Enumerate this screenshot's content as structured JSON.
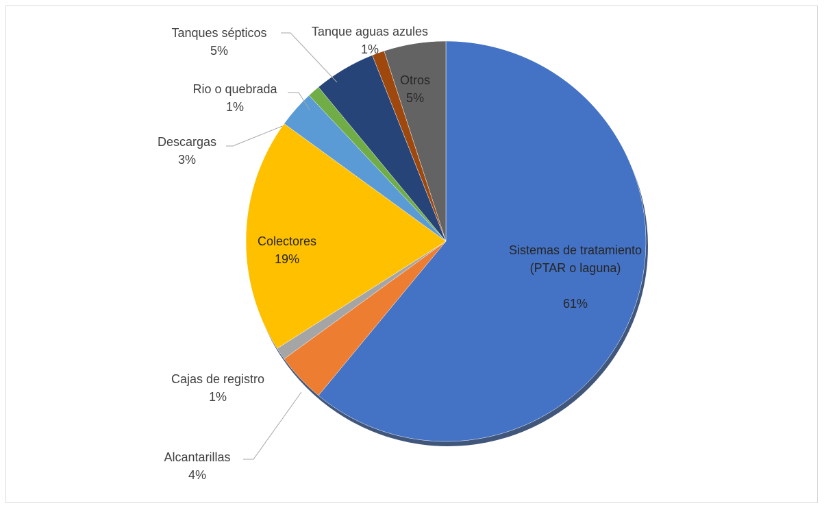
{
  "chart_data": {
    "type": "pie",
    "categories": [
      "Sistemas de tratamiento (PTAR o laguna)",
      "Alcantarillas",
      "Cajas de registro",
      "Colectores",
      "Descargas",
      "Rio o quebrada",
      "Tanques sépticos",
      "Tanque aguas azules",
      "Otros"
    ],
    "values": [
      61,
      4,
      1,
      19,
      3,
      1,
      5,
      1,
      5
    ],
    "value_labels": [
      "61%",
      "4%",
      "1%",
      "19%",
      "3%",
      "1%",
      "5%",
      "1%",
      "5%"
    ],
    "colors": [
      "#4472c4",
      "#ed7d31",
      "#a5a5a5",
      "#ffc000",
      "#5b9bd5",
      "#70ad47",
      "#264478",
      "#9e480e",
      "#636363"
    ]
  }
}
